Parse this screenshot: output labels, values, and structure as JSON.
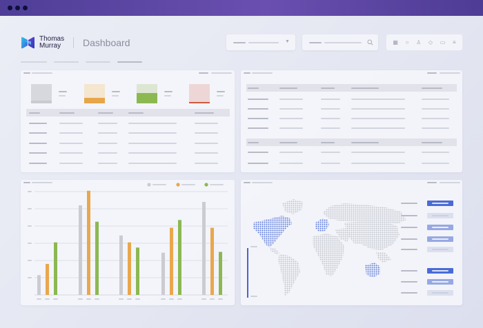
{
  "window": {
    "dots": [
      "dot-1",
      "dot-2",
      "dot-3"
    ]
  },
  "brand": {
    "line1": "Thomas",
    "line2": "Murray",
    "logo_icon": "thomas-murray-logo-icon"
  },
  "page": {
    "title": "Dashboard"
  },
  "toolbar": {
    "icons": [
      "grid-icon",
      "search-icon",
      "user-icon",
      "shield-icon",
      "chat-icon",
      "menu-icon"
    ]
  },
  "filter_dropdown": {
    "icon": "chevron-down-icon"
  },
  "search": {
    "icon": "search-icon"
  },
  "colors": {
    "accent": "#6a4fb0",
    "bar_grey": "#cbcbd2",
    "bar_orange": "#e9a74d",
    "bar_green": "#8cb852",
    "map_highlight": "#5a78d8",
    "map_base": "#c2c4cd",
    "button_blue": "#4a6bd6",
    "button_light_blue": "#97a8e3"
  },
  "kpis": [
    {
      "color": "#d7d8de",
      "fill_level": 0.15,
      "bar_color": "#c9cad2"
    },
    {
      "color": "#f4e6cf",
      "fill_level": 0.28,
      "bar_color": "#e7a64a"
    },
    {
      "color": "#dde6d3",
      "fill_level": 0.55,
      "bar_color": "#8cb852"
    },
    {
      "color": "#eed6d6",
      "fill_level": 0.08,
      "bar_color": "#cf5a3c"
    }
  ],
  "chart_data": {
    "type": "bar",
    "title": "",
    "xlabel": "",
    "ylabel": "",
    "ylim": [
      0,
      6
    ],
    "categories": [
      "",
      "",
      "",
      "",
      ""
    ],
    "series": [
      {
        "color": "#cbcbd2",
        "values": [
          1.15,
          5.2,
          3.45,
          2.45,
          5.4
        ]
      },
      {
        "color": "#e9a74d",
        "values": [
          1.8,
          6.05,
          3.05,
          3.9,
          3.9
        ]
      },
      {
        "color": "#8cb852",
        "values": [
          3.05,
          4.25,
          2.75,
          4.35,
          2.5
        ]
      }
    ],
    "grid": true,
    "legend_position": "top-right"
  },
  "map": {
    "highlighted_regions": [
      "north-america",
      "western-europe",
      "australia"
    ],
    "buttons": [
      "dark",
      "light",
      "mid",
      "mid",
      "light",
      "dark",
      "mid",
      "light"
    ]
  }
}
